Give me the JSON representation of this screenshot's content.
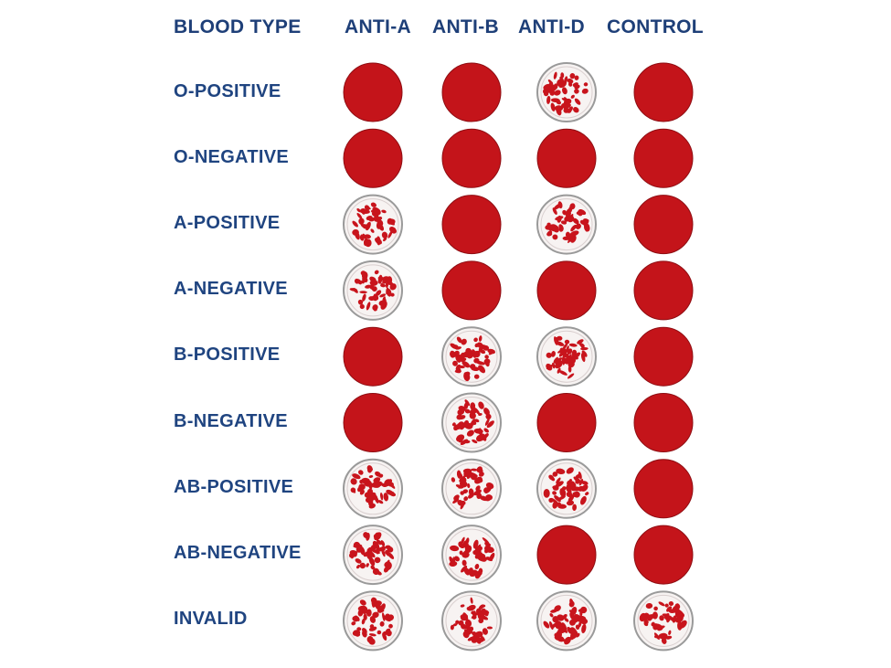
{
  "table": {
    "corner_header": "BLOOD TYPE",
    "columns": [
      "ANTI-A",
      "ANTI-B",
      "ANTI-D",
      "CONTROL"
    ],
    "rows": [
      {
        "label": "O-POSITIVE",
        "agglutination": [
          false,
          false,
          true,
          false
        ]
      },
      {
        "label": "O-NEGATIVE",
        "agglutination": [
          false,
          false,
          false,
          false
        ]
      },
      {
        "label": "A-POSITIVE",
        "agglutination": [
          true,
          false,
          true,
          false
        ]
      },
      {
        "label": "A-NEGATIVE",
        "agglutination": [
          true,
          false,
          false,
          false
        ]
      },
      {
        "label": "B-POSITIVE",
        "agglutination": [
          false,
          true,
          true,
          false
        ]
      },
      {
        "label": "B-NEGATIVE",
        "agglutination": [
          false,
          true,
          false,
          false
        ]
      },
      {
        "label": "AB-POSITIVE",
        "agglutination": [
          true,
          true,
          true,
          false
        ]
      },
      {
        "label": "AB-NEGATIVE",
        "agglutination": [
          true,
          true,
          false,
          false
        ]
      },
      {
        "label": "INVALID",
        "agglutination": [
          true,
          true,
          true,
          true
        ]
      }
    ]
  },
  "colors": {
    "text": "#1e3f78",
    "blood": "#c4141a",
    "clump": "#c8141c",
    "ring": "#9a9a9a",
    "well_bg": "#f7f3f2"
  }
}
